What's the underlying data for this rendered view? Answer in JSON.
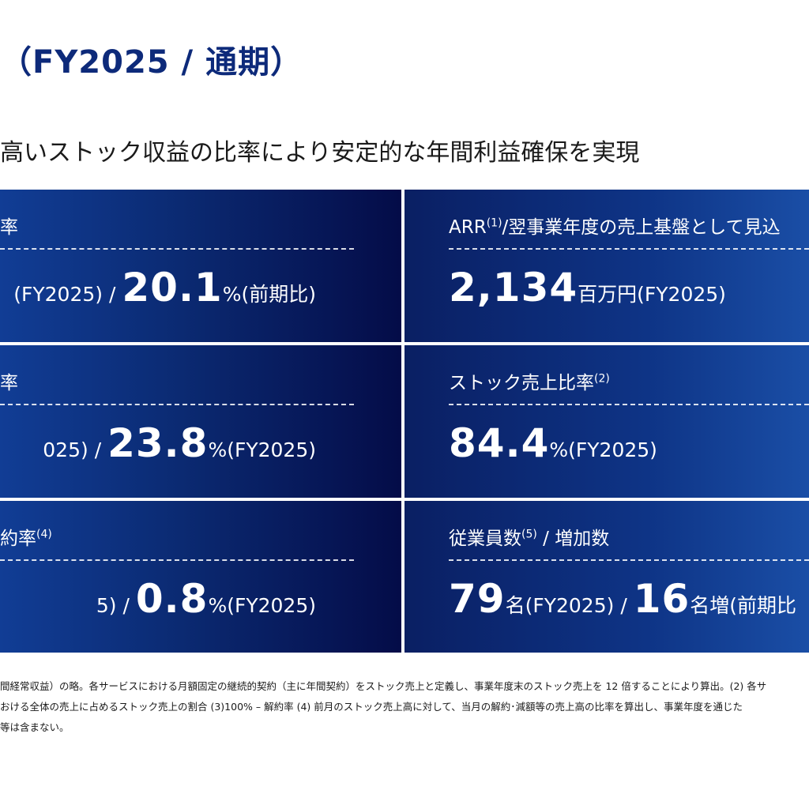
{
  "header": {
    "title": "（FY2025 / 通期）",
    "subtitle": "高いストック収益の比率により安定的な年間利益確保を実現"
  },
  "tiles": {
    "left0": {
      "label": "率",
      "value_prefix": "(FY2025) /",
      "value_big": "20.1",
      "value_suffix": "%(前期比)"
    },
    "right0": {
      "label": "ARR",
      "label_sup": "(1)",
      "label_tail": "/翌事業年度の売上基盤として見込",
      "value_big": "2,134",
      "value_suffix": "百万円(FY2025)"
    },
    "left1": {
      "label": "率",
      "value_prefix": "025) /",
      "value_big": "23.8",
      "value_suffix": "%(FY2025)"
    },
    "right1": {
      "label": "ストック売上比率",
      "label_sup": "(2)",
      "value_big": "84.4",
      "value_suffix": "%(FY2025)"
    },
    "left2": {
      "label": "約率",
      "label_sup": "(4)",
      "value_prefix": "5) /",
      "value_big": "0.8",
      "value_suffix": "%(FY2025)"
    },
    "right2": {
      "label": "従業員数",
      "label_sup": "(5)",
      "label_tail": " / 増加数",
      "value_big1": "79",
      "value_mid": "名(FY2025) /",
      "value_big2": "16",
      "value_suffix": "名増(前期比"
    }
  },
  "footnotes": [
    "間経常収益）の略。各サービスにおける月額固定の継続的契約（主に年間契約）をストック売上と定義し、事業年度末のストック売上を 12 倍することにより算出。(2) 各サ",
    "おける全体の売上に占めるストック売上の割合 (3)100% – 解約率 (4) 前月のストック売上高に対して、当月の解約･減額等の売上高の比率を算出し、事業年度を通じた",
    "等は含まない。"
  ]
}
